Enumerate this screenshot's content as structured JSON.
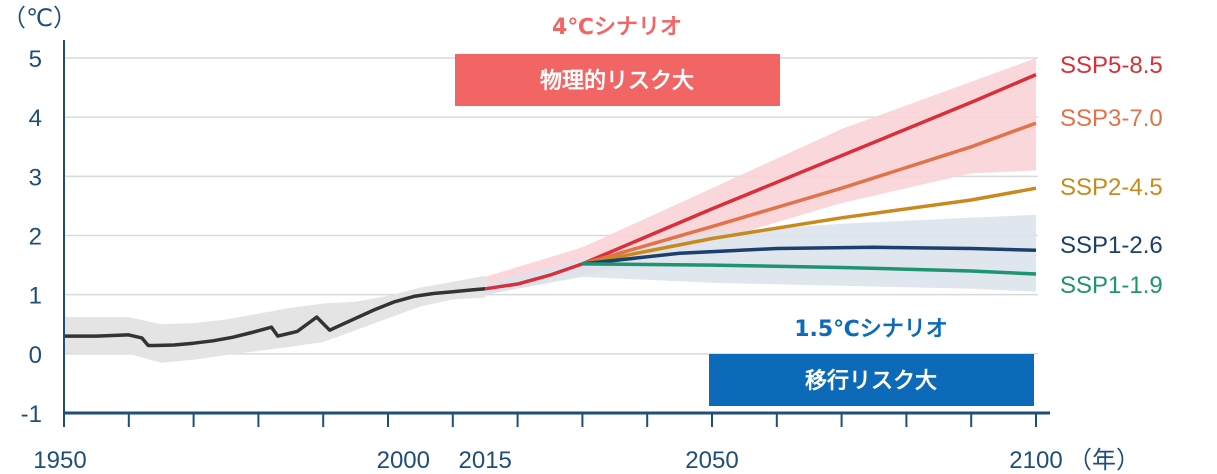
{
  "chart_data": {
    "type": "line",
    "ylabel": "（℃）",
    "xlabel": "（年）",
    "ylim": [
      -1,
      5
    ],
    "xlim": [
      1950,
      2100
    ],
    "y_ticks": [
      -1,
      0,
      1,
      2,
      3,
      4,
      5
    ],
    "x_tick_labels": [
      "1950",
      "2000",
      "2015",
      "2050",
      "2100"
    ],
    "grid": true,
    "historical": {
      "x": [
        1950,
        1955,
        1960,
        1962,
        1963,
        1964,
        1967,
        1970,
        1973,
        1976,
        1979,
        1982,
        1983,
        1986,
        1989,
        1991,
        1992,
        1995,
        1998,
        2001,
        2004,
        2007,
        2010,
        2013,
        2015
      ],
      "y": [
        0.3,
        0.3,
        0.32,
        0.27,
        0.14,
        0.14,
        0.15,
        0.18,
        0.22,
        0.28,
        0.36,
        0.45,
        0.3,
        0.38,
        0.62,
        0.4,
        0.45,
        0.6,
        0.75,
        0.88,
        0.97,
        1.02,
        1.05,
        1.08,
        1.1
      ],
      "color": "#333333"
    },
    "historical_band": {
      "x": [
        1950,
        1955,
        1960,
        1965,
        1970,
        1975,
        1980,
        1985,
        1990,
        1995,
        2000,
        2005,
        2010,
        2015
      ],
      "upper": [
        0.62,
        0.62,
        0.62,
        0.5,
        0.52,
        0.58,
        0.68,
        0.78,
        0.85,
        0.88,
        0.98,
        1.12,
        1.22,
        1.32
      ],
      "lower": [
        0.0,
        0.0,
        0.0,
        -0.15,
        -0.1,
        -0.02,
        0.05,
        0.12,
        0.2,
        0.4,
        0.6,
        0.8,
        0.92,
        0.95
      ],
      "color": "#e4e4e4"
    },
    "future_common": {
      "x": [
        2015,
        2020,
        2025,
        2030
      ],
      "y": [
        1.1,
        1.18,
        1.33,
        1.52
      ],
      "color": "#d8303a"
    },
    "series": [
      {
        "name": "SSP5-8.5",
        "x": [
          2030,
          2050,
          2070,
          2090,
          2100
        ],
        "y": [
          1.52,
          2.45,
          3.35,
          4.25,
          4.72
        ],
        "color": "#d8303a"
      },
      {
        "name": "SSP3-7.0",
        "x": [
          2030,
          2050,
          2070,
          2090,
          2100
        ],
        "y": [
          1.52,
          2.15,
          2.8,
          3.5,
          3.9
        ],
        "color": "#e0734a"
      },
      {
        "name": "SSP2-4.5",
        "x": [
          2030,
          2050,
          2070,
          2090,
          2100
        ],
        "y": [
          1.52,
          1.95,
          2.3,
          2.6,
          2.8
        ],
        "color": "#c88a1e"
      },
      {
        "name": "SSP1-2.6",
        "x": [
          2030,
          2045,
          2060,
          2075,
          2090,
          2100
        ],
        "y": [
          1.52,
          1.7,
          1.78,
          1.8,
          1.78,
          1.75
        ],
        "color": "#1c3f6e"
      },
      {
        "name": "SSP1-1.9",
        "x": [
          2030,
          2050,
          2070,
          2090,
          2100
        ],
        "y": [
          1.52,
          1.5,
          1.46,
          1.4,
          1.35
        ],
        "color": "#1f9470"
      }
    ],
    "bands": [
      {
        "x": [
          2015,
          2030,
          2050,
          2070,
          2090,
          2100
        ],
        "upper": [
          1.3,
          1.8,
          2.8,
          3.8,
          4.6,
          5.0
        ],
        "lower": [
          1.0,
          1.32,
          1.9,
          2.55,
          3.05,
          3.1
        ],
        "color": "#f9d3d6"
      },
      {
        "x": [
          2015,
          2030,
          2050,
          2070,
          2090,
          2100
        ],
        "upper": [
          1.18,
          1.6,
          2.05,
          2.2,
          2.3,
          2.35
        ],
        "lower": [
          1.0,
          1.3,
          1.2,
          1.15,
          1.1,
          1.05
        ],
        "color": "#dde3ec"
      }
    ],
    "annotations": {
      "top_title": "4℃シナリオ",
      "top_box": "物理的リスク大",
      "bottom_title": "1.5℃シナリオ",
      "bottom_box": "移行リスク大"
    },
    "colors": {
      "axis": "#1f4e79",
      "grid": "#d9d9d9",
      "top_accent": "#f26565",
      "top_box_fill": "#f26565",
      "bottom_accent": "#0d6ab8",
      "bottom_box_fill": "#0d6ab8"
    }
  }
}
